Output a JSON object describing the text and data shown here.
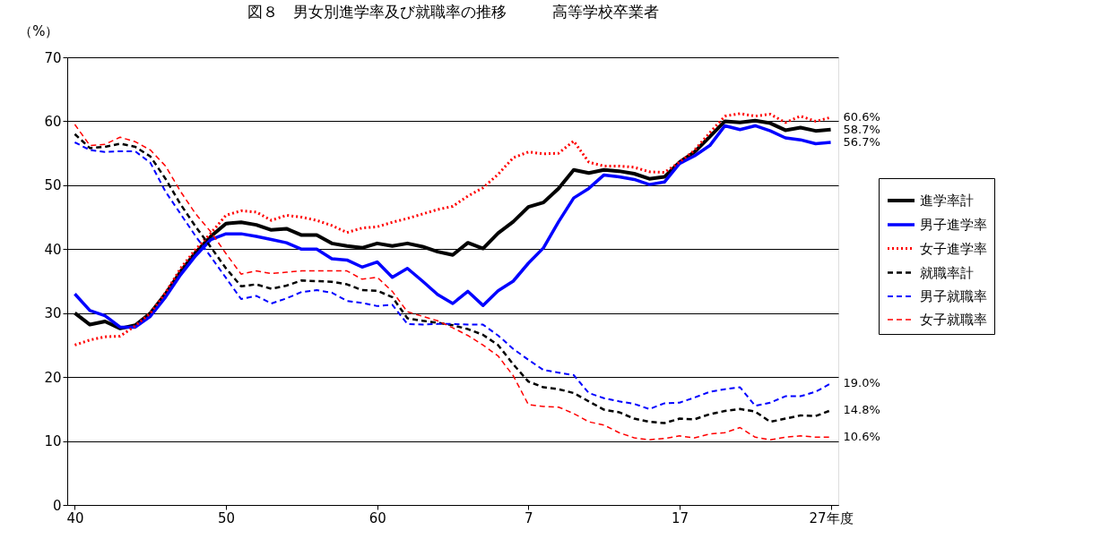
{
  "chart_data": {
    "type": "line",
    "title": "図８　男女別進学率及び就職率の推移　　　高等学校卒業者",
    "ylabel": "（%）",
    "categories": [
      "40",
      null,
      null,
      null,
      null,
      null,
      null,
      null,
      null,
      null,
      "50",
      null,
      null,
      null,
      null,
      null,
      null,
      null,
      null,
      null,
      "60",
      null,
      null,
      null,
      null,
      null,
      null,
      null,
      null,
      null,
      "7",
      null,
      null,
      null,
      null,
      null,
      null,
      null,
      null,
      null,
      "17",
      null,
      null,
      null,
      null,
      null,
      null,
      null,
      null,
      null,
      "27年度"
    ],
    "ylim": [
      0,
      70
    ],
    "yticks": [
      0,
      10,
      20,
      30,
      40,
      50,
      60,
      70
    ],
    "grid": "y",
    "legend": "right",
    "series": [
      {
        "name": "進学率計",
        "color": "#000000",
        "line_style": "solid",
        "values": [
          30,
          28.2,
          28.7,
          27.6,
          28.1,
          30,
          33,
          36.5,
          39.5,
          42,
          44,
          44.2,
          43.8,
          43,
          43.2,
          42.2,
          42.2,
          40.9,
          40.5,
          40.2,
          40.9,
          40.5,
          40.9,
          40.4,
          39.6,
          39.1,
          41,
          40.1,
          42.5,
          44.3,
          46.6,
          47.3,
          49.5,
          52.4,
          51.9,
          52.4,
          52.2,
          51.8,
          51,
          51.3,
          53.6,
          55.2,
          57.6,
          60,
          59.8,
          60.1,
          59.7,
          58.6,
          59,
          58.5,
          58.7
        ],
        "value_labels": [
          null,
          null,
          null,
          null,
          null,
          null,
          null,
          null,
          null,
          null,
          null,
          null,
          null,
          null,
          null,
          null,
          null,
          null,
          null,
          null,
          null,
          null,
          null,
          null,
          null,
          null,
          null,
          null,
          null,
          null,
          null,
          null,
          null,
          null,
          null,
          null,
          null,
          null,
          null,
          null,
          null,
          null,
          null,
          null,
          null,
          null,
          null,
          null,
          null,
          null,
          "58.7%"
        ]
      },
      {
        "name": "男子進学率",
        "color": "#0000ff",
        "line_style": "solid",
        "values": [
          33,
          30.4,
          29.6,
          27.8,
          27.8,
          29.5,
          32.5,
          36,
          39,
          41.5,
          42.4,
          42.4,
          42,
          41.5,
          41,
          40,
          40,
          38.5,
          38.3,
          37.2,
          38,
          35.6,
          37,
          35,
          32.9,
          31.5,
          33.4,
          31.2,
          33.5,
          35,
          37.8,
          40.2,
          44.3,
          48,
          49.5,
          51.6,
          51.3,
          50.9,
          50.1,
          50.5,
          53.4,
          54.6,
          56.2,
          59.3,
          58.7,
          59.3,
          58.5,
          57.4,
          57.1,
          56.5,
          56.7
        ],
        "value_labels": [
          null,
          null,
          null,
          null,
          null,
          null,
          null,
          null,
          null,
          null,
          null,
          null,
          null,
          null,
          null,
          null,
          null,
          null,
          null,
          null,
          null,
          null,
          null,
          null,
          null,
          null,
          null,
          null,
          null,
          null,
          null,
          null,
          null,
          null,
          null,
          null,
          null,
          null,
          null,
          null,
          null,
          null,
          null,
          null,
          null,
          null,
          null,
          null,
          null,
          null,
          "56.7%"
        ]
      },
      {
        "name": "女子進学率",
        "color": "#ff0000",
        "line_style": "dotted",
        "values": [
          25,
          25.8,
          26.3,
          26.4,
          28,
          30,
          33.2,
          37,
          40,
          42.5,
          45.3,
          46,
          45.8,
          44.5,
          45.3,
          45,
          44.5,
          43.7,
          42.6,
          43.3,
          43.5,
          44.2,
          44.8,
          45.5,
          46.2,
          46.7,
          48.3,
          49.6,
          51.7,
          54.3,
          55.2,
          54.9,
          55,
          56.9,
          53.6,
          53,
          53,
          52.8,
          52.1,
          52,
          53.6,
          55.5,
          58.2,
          60.8,
          61.2,
          60.8,
          61.1,
          59.8,
          60.8,
          60,
          60.6
        ],
        "value_labels": [
          null,
          null,
          null,
          null,
          null,
          null,
          null,
          null,
          null,
          null,
          null,
          null,
          null,
          null,
          null,
          null,
          null,
          null,
          null,
          null,
          null,
          null,
          null,
          null,
          null,
          null,
          null,
          null,
          null,
          null,
          null,
          null,
          null,
          null,
          null,
          null,
          null,
          null,
          null,
          null,
          null,
          null,
          null,
          null,
          null,
          null,
          null,
          null,
          null,
          null,
          "60.6%"
        ]
      },
      {
        "name": "就職率計",
        "color": "#000000",
        "line_style": "dashed",
        "values": [
          58,
          55.8,
          56,
          56.5,
          56,
          54.5,
          51,
          47,
          43.5,
          40.3,
          37,
          34.2,
          34.5,
          33.8,
          34.3,
          35.1,
          35,
          34.9,
          34.5,
          33.6,
          33.5,
          32.5,
          29.2,
          28.8,
          28.5,
          28.1,
          27.5,
          26.6,
          25,
          22,
          19.3,
          18.4,
          18.1,
          17.5,
          16.2,
          14.9,
          14.5,
          13.5,
          13,
          12.8,
          13.5,
          13.4,
          14.2,
          14.7,
          15,
          14.6,
          13,
          13.5,
          14,
          13.9,
          14.8
        ],
        "value_labels": [
          null,
          null,
          null,
          null,
          null,
          null,
          null,
          null,
          null,
          null,
          null,
          null,
          null,
          null,
          null,
          null,
          null,
          null,
          null,
          null,
          null,
          null,
          null,
          null,
          null,
          null,
          null,
          null,
          null,
          null,
          null,
          null,
          null,
          null,
          null,
          null,
          null,
          null,
          null,
          null,
          null,
          null,
          null,
          null,
          null,
          null,
          null,
          null,
          null,
          null,
          "14.8%"
        ]
      },
      {
        "name": "男子就職率",
        "color": "#0000ff",
        "line_style": "dashed",
        "values": [
          56.7,
          55.5,
          55.2,
          55.3,
          55.3,
          53.5,
          49,
          45.5,
          42,
          38.8,
          35.5,
          32.2,
          32.7,
          31.5,
          32.3,
          33.3,
          33.6,
          33.2,
          31.9,
          31.6,
          31.1,
          31.3,
          28.3,
          28.2,
          28.3,
          28.3,
          28.2,
          28.2,
          26.5,
          24.4,
          22.7,
          21.1,
          20.7,
          20.3,
          17.5,
          16.7,
          16.2,
          15.8,
          15,
          15.9,
          16,
          16.8,
          17.7,
          18.1,
          18.4,
          15.5,
          16,
          17,
          17,
          17.7,
          19.0
        ],
        "value_labels": [
          null,
          null,
          null,
          null,
          null,
          null,
          null,
          null,
          null,
          null,
          null,
          null,
          null,
          null,
          null,
          null,
          null,
          null,
          null,
          null,
          null,
          null,
          null,
          null,
          null,
          null,
          null,
          null,
          null,
          null,
          null,
          null,
          null,
          null,
          null,
          null,
          null,
          null,
          null,
          null,
          null,
          null,
          null,
          null,
          null,
          null,
          null,
          null,
          null,
          null,
          "19.0%"
        ]
      },
      {
        "name": "女子就職率",
        "color": "#ff0000",
        "line_style": "dashed",
        "values": [
          59.5,
          56.2,
          56.4,
          57.5,
          56.8,
          55.5,
          53,
          49,
          45.5,
          42.7,
          39.3,
          36.1,
          36.6,
          36.2,
          36.4,
          36.6,
          36.6,
          36.6,
          36.6,
          35.3,
          35.6,
          33.4,
          30.2,
          29.5,
          28.8,
          27.7,
          26.5,
          25,
          23.3,
          20.2,
          15.7,
          15.4,
          15.3,
          14.3,
          13,
          12.5,
          11.3,
          10.5,
          10.2,
          10.4,
          10.8,
          10.5,
          11.1,
          11.3,
          12.1,
          10.6,
          10.2,
          10.6,
          10.8,
          10.6,
          10.6
        ],
        "value_labels": [
          null,
          null,
          null,
          null,
          null,
          null,
          null,
          null,
          null,
          null,
          null,
          null,
          null,
          null,
          null,
          null,
          null,
          null,
          null,
          null,
          null,
          null,
          null,
          null,
          null,
          null,
          null,
          null,
          null,
          null,
          null,
          null,
          null,
          null,
          null,
          null,
          null,
          null,
          null,
          null,
          null,
          null,
          null,
          null,
          null,
          null,
          null,
          null,
          null,
          null,
          "10.6%"
        ]
      }
    ]
  }
}
